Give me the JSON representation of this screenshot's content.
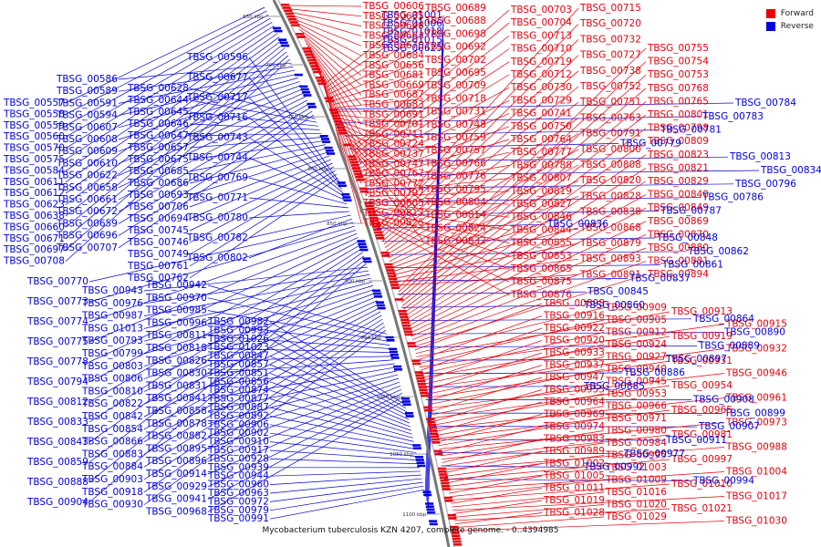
{
  "colors": {
    "forward": "#e8000b",
    "reverse": "#0000e0",
    "backbone": "#555555"
  },
  "legend": {
    "forward_label": "Forward",
    "reverse_label": "Reverse"
  },
  "caption": "Mycobacterium tuberculosis KZN 4207, complete genome. - 0..4394985",
  "ticks": [
    "650 kbp",
    "700 kbp",
    "750 kbp",
    "800 kbp",
    "850 kbp",
    "900 kbp",
    "950 kbp",
    "1000 kbp",
    "1050 kbp",
    "1100 kbp"
  ],
  "reverse_genes": [
    "TBSG_00557",
    "TBSG_00558",
    "TBSG_00559",
    "TBSG_00560",
    "TBSG_00570",
    "TBSG_00575",
    "TBSG_00584",
    "TBSG_00611",
    "TBSG_00612",
    "TBSG_00623",
    "TBSG_00638",
    "TBSG_00660",
    "TBSG_00671",
    "TBSG_00697",
    "TBSG_00708",
    "TBSG_00586",
    "TBSG_00589",
    "TBSG_00591",
    "TBSG_00594",
    "TBSG_00607",
    "TBSG_00608",
    "TBSG_00609",
    "TBSG_00610",
    "TBSG_00622",
    "TBSG_00658",
    "TBSG_00661",
    "TBSG_00672",
    "TBSG_00659",
    "TBSG_00696",
    "TBSG_00707",
    "TBSG_00628",
    "TBSG_00644",
    "TBSG_00645",
    "TBSG_00646",
    "TBSG_00647",
    "TBSG_00657",
    "TBSG_00675",
    "TBSG_00685",
    "TBSG_00686",
    "TBSG_00693",
    "TBSG_00706",
    "TBSG_00694",
    "TBSG_00745",
    "TBSG_00746",
    "TBSG_00749",
    "TBSG_00761",
    "TBSG_00762",
    "TBSG_00596",
    "TBSG_00677",
    "TBSG_00717",
    "TBSG_00716",
    "TBSG_00743",
    "TBSG_00744",
    "TBSG_00769",
    "TBSG_00771",
    "TBSG_00780",
    "TBSG_00782",
    "TBSG_00802",
    "TBSG_00770",
    "TBSG_00773",
    "TBSG_00774",
    "TBSG_00775",
    "TBSG_00778",
    "TBSG_00794",
    "TBSG_00812",
    "TBSG_00833",
    "TBSG_00843",
    "TBSG_00859",
    "TBSG_00888",
    "TBSG_00904",
    "TBSG_00943",
    "TBSG_00976",
    "TBSG_00987",
    "TBSG_01013",
    "TBSG_00793",
    "TBSG_00799",
    "TBSG_00803",
    "TBSG_00806",
    "TBSG_00810",
    "TBSG_00822",
    "TBSG_00842",
    "TBSG_00854",
    "TBSG_00866",
    "TBSG_00883",
    "TBSG_00884",
    "TBSG_00903",
    "TBSG_00918",
    "TBSG_00930",
    "TBSG_00942",
    "TBSG_00970",
    "TBSG_00985",
    "TBSG_00996",
    "TBSG_00811",
    "TBSG_00818",
    "TBSG_00826",
    "TBSG_00830",
    "TBSG_00831",
    "TBSG_00841",
    "TBSG_00858",
    "TBSG_00878",
    "TBSG_00882",
    "TBSG_00895",
    "TBSG_00896",
    "TBSG_00914",
    "TBSG_00929",
    "TBSG_00941",
    "TBSG_00968",
    "TBSG_00982",
    "TBSG_00993",
    "TBSG_01026",
    "TBSG_01023",
    "TBSG_00847",
    "TBSG_00857",
    "TBSG_00851",
    "TBSG_00856",
    "TBSG_00874",
    "TBSG_00877",
    "TBSG_00887",
    "TBSG_00892",
    "TBSG_00906",
    "TBSG_00902",
    "TBSG_00910",
    "TBSG_00917",
    "TBSG_00928",
    "TBSG_00939",
    "TBSG_00944",
    "TBSG_00960",
    "TBSG_00963",
    "TBSG_00972",
    "TBSG_00979",
    "TBSG_00991",
    "TBSG_01001",
    "TBSG_01006",
    "TBSG_01018",
    "TBSG_01015",
    "TBSG_00625",
    "TBSG_00641",
    "TBSG_00643",
    "TBSG_00662",
    "TBSG_00668"
  ],
  "forward_genes": [
    "TBSG_00606",
    "TBSG_00635",
    "TBSG_00648",
    "TBSG_00663",
    "TBSG_00670",
    "TBSG_00684",
    "TBSG_00656",
    "TBSG_00681",
    "TBSG_00669",
    "TBSG_00687",
    "TBSG_00683",
    "TBSG_00691",
    "TBSG_00701",
    "TBSG_00711",
    "TBSG_00724",
    "TBSG_00737",
    "TBSG_00747",
    "TBSG_00767",
    "TBSG_00772",
    "TBSG_00797",
    "TBSG_00805",
    "TBSG_00817",
    "TBSG_00825",
    "TBSG_00689",
    "TBSG_00688",
    "TBSG_00698",
    "TBSG_00692",
    "TBSG_00702",
    "TBSG_00695",
    "TBSG_00709",
    "TBSG_00718",
    "TBSG_00731",
    "TBSG_00748",
    "TBSG_00759",
    "TBSG_00757",
    "TBSG_00766",
    "TBSG_00776",
    "TBSG_00795",
    "TBSG_00804",
    "TBSG_00814",
    "TBSG_00824",
    "TBSG_00832",
    "TBSG_00703",
    "TBSG_00704",
    "TBSG_00713",
    "TBSG_00710",
    "TBSG_00719",
    "TBSG_00712",
    "TBSG_00730",
    "TBSG_00729",
    "TBSG_00741",
    "TBSG_00750",
    "TBSG_00764",
    "TBSG_00777",
    "TBSG_00788",
    "TBSG_00807",
    "TBSG_00819",
    "TBSG_00827",
    "TBSG_00846",
    "TBSG_00844",
    "TBSG_00855",
    "TBSG_00853",
    "TBSG_00865",
    "TBSG_00875",
    "TBSG_00876",
    "TBSG_00715",
    "TBSG_00720",
    "TBSG_00732",
    "TBSG_00727",
    "TBSG_00738",
    "TBSG_00752",
    "TBSG_00751",
    "TBSG_00763",
    "TBSG_00791",
    "TBSG_00800",
    "TBSG_00808",
    "TBSG_00820",
    "TBSG_00828",
    "TBSG_00838",
    "TBSG_00868",
    "TBSG_00879",
    "TBSG_00893",
    "TBSG_00891",
    "TBSG_00755",
    "TBSG_00754",
    "TBSG_00753",
    "TBSG_00768",
    "TBSG_00765",
    "TBSG_00801",
    "TBSG_00798",
    "TBSG_00809",
    "TBSG_00823",
    "TBSG_00821",
    "TBSG_00829",
    "TBSG_00840",
    "TBSG_00849",
    "TBSG_00869",
    "TBSG_00870",
    "TBSG_00880",
    "TBSG_00881",
    "TBSG_00894",
    "TBSG_00898",
    "TBSG_00909",
    "TBSG_00913",
    "TBSG_00916",
    "TBSG_00905",
    "TBSG_00915",
    "TBSG_00922",
    "TBSG_00912",
    "TBSG_00919",
    "TBSG_00920",
    "TBSG_00924",
    "TBSG_00932",
    "TBSG_00933",
    "TBSG_00927",
    "TBSG_00931",
    "TBSG_00937",
    "TBSG_00940",
    "TBSG_00946",
    "TBSG_00947",
    "TBSG_00945",
    "TBSG_00954",
    "TBSG_00955",
    "TBSG_00953",
    "TBSG_00961",
    "TBSG_00964",
    "TBSG_00966",
    "TBSG_00965",
    "TBSG_00969",
    "TBSG_00971",
    "TBSG_00973",
    "TBSG_00974",
    "TBSG_00980",
    "TBSG_00981",
    "TBSG_00983",
    "TBSG_00984",
    "TBSG_00988",
    "TBSG_00989",
    "TBSG_00995",
    "TBSG_00997",
    "TBSG_01002",
    "TBSG_01003",
    "TBSG_01004",
    "TBSG_01005",
    "TBSG_01009",
    "TBSG_01010",
    "TBSG_01011",
    "TBSG_01016",
    "TBSG_01017",
    "TBSG_01019",
    "TBSG_01020",
    "TBSG_01021",
    "TBSG_01028",
    "TBSG_01029",
    "TBSG_01030"
  ],
  "reverse_right_genes": [
    "TBSG_00784",
    "TBSG_00783",
    "TBSG_00781",
    "TBSG_00779",
    "TBSG_00813",
    "TBSG_00834",
    "TBSG_00796",
    "TBSG_00786",
    "TBSG_00787",
    "TBSG_00836",
    "TBSG_00848",
    "TBSG_00862",
    "TBSG_00861",
    "TBSG_00837",
    "TBSG_00845",
    "TBSG_00860",
    "TBSG_00864",
    "TBSG_00890",
    "TBSG_00889",
    "TBSG_00897",
    "TBSG_00886",
    "TBSG_00885",
    "TBSG_00908",
    "TBSG_00899",
    "TBSG_00907",
    "TBSG_00911",
    "TBSG_00977",
    "TBSG_00992",
    "TBSG_00994"
  ]
}
